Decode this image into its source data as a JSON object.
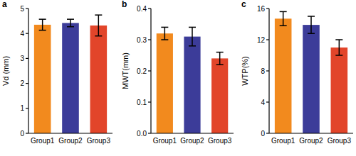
{
  "chart_data": [
    {
      "type": "bar",
      "title": "a",
      "y_label": "Vd (mm)",
      "categories": [
        "Group1",
        "Group2",
        "Group3"
      ],
      "values": [
        4.35,
        4.42,
        4.32
      ],
      "errors": [
        0.22,
        0.15,
        0.42
      ],
      "colors": [
        "#f28a1e",
        "#3c3c99",
        "#e2452a"
      ],
      "ylim": [
        0,
        5
      ],
      "yticks": [
        0,
        1,
        2,
        3,
        4,
        5
      ]
    },
    {
      "type": "bar",
      "title": "b",
      "y_label": "MWT(mm)",
      "categories": [
        "Group1",
        "Group2",
        "Group3"
      ],
      "values": [
        0.32,
        0.31,
        0.24
      ],
      "errors": [
        0.02,
        0.03,
        0.02
      ],
      "colors": [
        "#f28a1e",
        "#3c3c99",
        "#e2452a"
      ],
      "ylim": [
        0,
        0.4
      ],
      "yticks": [
        {
          "value": 0,
          "label": "0.0"
        },
        0.1,
        0.2,
        0.3,
        0.4
      ]
    },
    {
      "type": "bar",
      "title": "c",
      "y_label": "WTP(%)",
      "categories": [
        "Group1",
        "Group2",
        "Group3"
      ],
      "values": [
        14.7,
        13.9,
        11.0
      ],
      "errors": [
        0.9,
        1.1,
        1.0
      ],
      "colors": [
        "#f28a1e",
        "#3c3c99",
        "#e2452a"
      ],
      "ylim": [
        0,
        16
      ],
      "yticks": [
        0,
        4,
        8,
        12,
        16
      ]
    }
  ]
}
